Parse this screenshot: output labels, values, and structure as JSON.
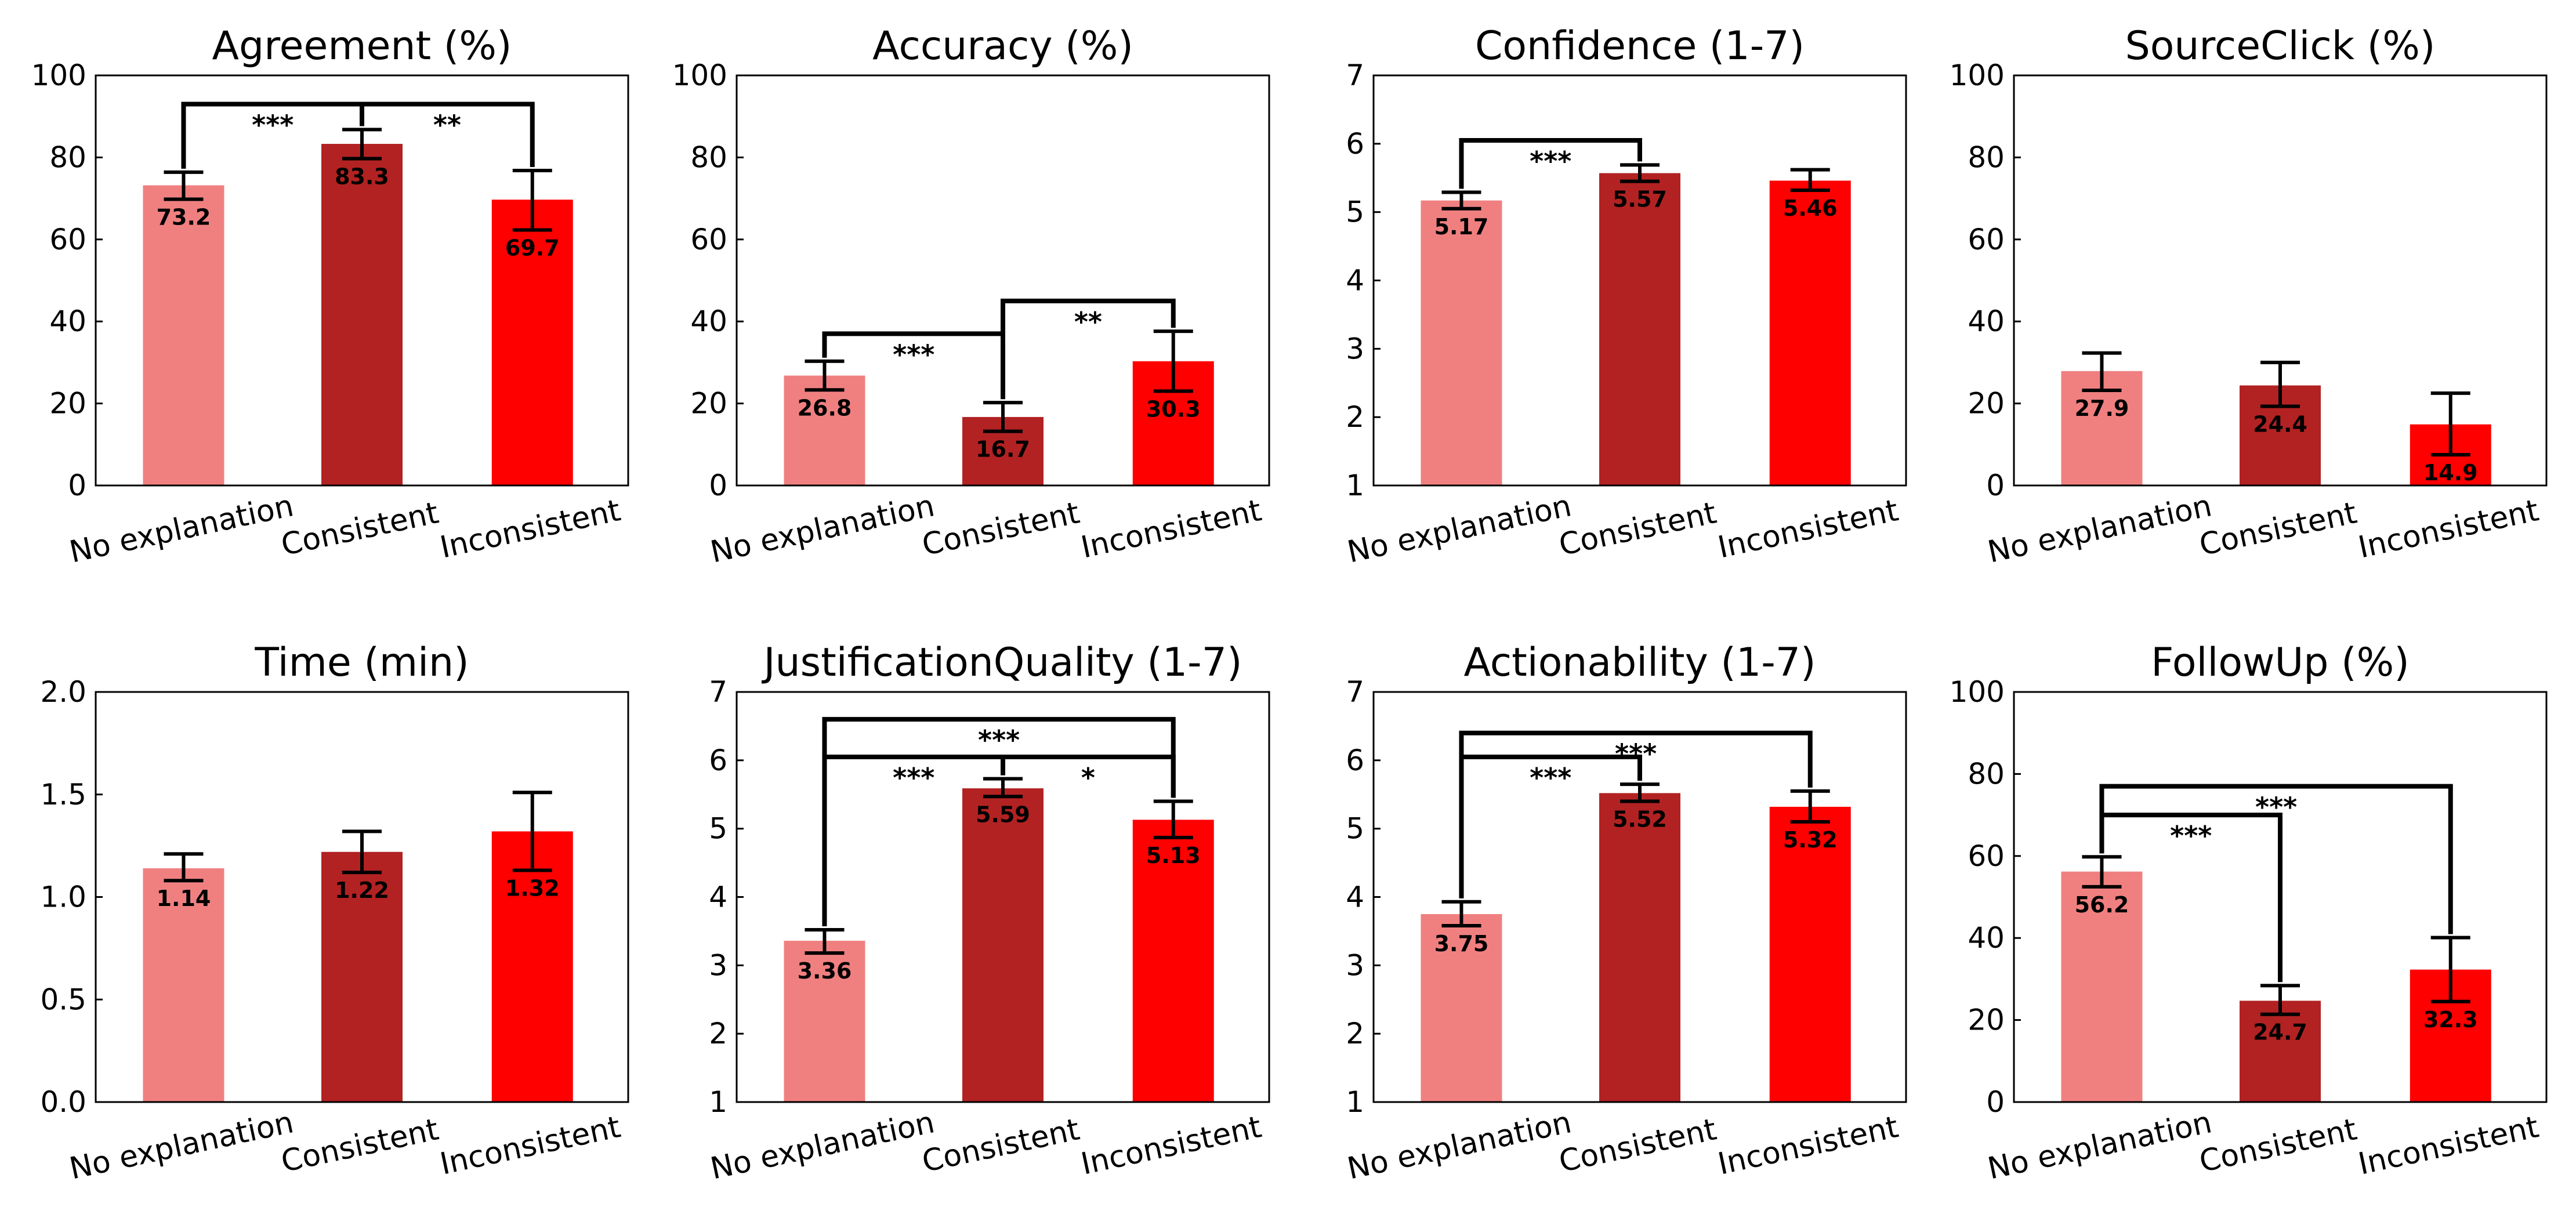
{
  "categories": [
    "No explanation",
    "Consistent",
    "Inconsistent"
  ],
  "colors": {
    "no_explanation": "#f08080",
    "consistent": "#b22222",
    "inconsistent": "#ff0000"
  },
  "chart_data": [
    {
      "type": "bar",
      "title": "Agreement (%)",
      "categories": [
        "No explanation",
        "Consistent",
        "Inconsistent"
      ],
      "values": [
        73.2,
        83.3,
        69.7
      ],
      "value_labels": [
        "73.2",
        "83.3",
        "69.7"
      ],
      "errors": [
        [
          69.8,
          76.4
        ],
        [
          79.7,
          86.8
        ],
        [
          62.3,
          76.8
        ]
      ],
      "ylim": [
        0,
        100
      ],
      "yticks": [
        0,
        20,
        40,
        60,
        80,
        100
      ],
      "ytick_labels": [
        "0",
        "20",
        "40",
        "60",
        "80",
        "100"
      ],
      "significance": [
        {
          "from": 0,
          "to": 1,
          "label": "***",
          "level": 93
        },
        {
          "from": 1,
          "to": 2,
          "label": "**",
          "level": 93
        }
      ]
    },
    {
      "type": "bar",
      "title": "Accuracy (%)",
      "categories": [
        "No explanation",
        "Consistent",
        "Inconsistent"
      ],
      "values": [
        26.8,
        16.7,
        30.3
      ],
      "value_labels": [
        "26.8",
        "16.7",
        "30.3"
      ],
      "errors": [
        [
          23.3,
          30.3
        ],
        [
          13.2,
          20.2
        ],
        [
          23.0,
          37.6
        ]
      ],
      "ylim": [
        0,
        100
      ],
      "yticks": [
        0,
        20,
        40,
        60,
        80,
        100
      ],
      "ytick_labels": [
        "0",
        "20",
        "40",
        "60",
        "80",
        "100"
      ],
      "significance": [
        {
          "from": 0,
          "to": 1,
          "label": "***",
          "level": 37
        },
        {
          "from": 1,
          "to": 2,
          "label": "**",
          "level": 45
        }
      ]
    },
    {
      "type": "bar",
      "title": "Confidence (1-7)",
      "categories": [
        "No explanation",
        "Consistent",
        "Inconsistent"
      ],
      "values": [
        5.17,
        5.57,
        5.46
      ],
      "value_labels": [
        "5.17",
        "5.57",
        "5.46"
      ],
      "errors": [
        [
          5.05,
          5.29
        ],
        [
          5.45,
          5.69
        ],
        [
          5.32,
          5.62
        ]
      ],
      "ylim": [
        1,
        7
      ],
      "yticks": [
        1,
        2,
        3,
        4,
        5,
        6,
        7
      ],
      "ytick_labels": [
        "1",
        "2",
        "3",
        "4",
        "5",
        "6",
        "7"
      ],
      "significance": [
        {
          "from": 0,
          "to": 1,
          "label": "***",
          "level": 6.05
        }
      ]
    },
    {
      "type": "bar",
      "title": "SourceClick (%)",
      "categories": [
        "No explanation",
        "Consistent",
        "Inconsistent"
      ],
      "values": [
        27.9,
        24.4,
        14.9
      ],
      "value_labels": [
        "27.9",
        "24.4",
        "14.9"
      ],
      "errors": [
        [
          23.2,
          32.3
        ],
        [
          19.3,
          30.0
        ],
        [
          7.5,
          22.5
        ]
      ],
      "ylim": [
        0,
        100
      ],
      "yticks": [
        0,
        20,
        40,
        60,
        80,
        100
      ],
      "ytick_labels": [
        "0",
        "20",
        "40",
        "60",
        "80",
        "100"
      ],
      "significance": []
    },
    {
      "type": "bar",
      "title": "Time (min)",
      "categories": [
        "No explanation",
        "Consistent",
        "Inconsistent"
      ],
      "values": [
        1.14,
        1.22,
        1.32
      ],
      "value_labels": [
        "1.14",
        "1.22",
        "1.32"
      ],
      "errors": [
        [
          1.08,
          1.21
        ],
        [
          1.12,
          1.32
        ],
        [
          1.13,
          1.51
        ]
      ],
      "ylim": [
        0,
        2
      ],
      "yticks": [
        0,
        0.5,
        1,
        1.5,
        2
      ],
      "ytick_labels": [
        "0.0",
        "0.5",
        "1.0",
        "1.5",
        "2.0"
      ],
      "significance": []
    },
    {
      "type": "bar",
      "title": "JustificationQuality (1-7)",
      "categories": [
        "No explanation",
        "Consistent",
        "Inconsistent"
      ],
      "values": [
        3.36,
        5.59,
        5.13
      ],
      "value_labels": [
        "3.36",
        "5.59",
        "5.13"
      ],
      "errors": [
        [
          3.18,
          3.52
        ],
        [
          5.47,
          5.73
        ],
        [
          4.87,
          5.4
        ]
      ],
      "ylim": [
        1,
        7
      ],
      "yticks": [
        1,
        2,
        3,
        4,
        5,
        6,
        7
      ],
      "ytick_labels": [
        "1",
        "2",
        "3",
        "4",
        "5",
        "6",
        "7"
      ],
      "significance": [
        {
          "from": 0,
          "to": 1,
          "label": "***",
          "level": 6.05
        },
        {
          "from": 1,
          "to": 2,
          "label": "*",
          "level": 6.05
        },
        {
          "from": 0,
          "to": 2,
          "label": "***",
          "level": 6.6
        }
      ]
    },
    {
      "type": "bar",
      "title": "Actionability (1-7)",
      "categories": [
        "No explanation",
        "Consistent",
        "Inconsistent"
      ],
      "values": [
        3.75,
        5.52,
        5.32
      ],
      "value_labels": [
        "3.75",
        "5.52",
        "5.32"
      ],
      "errors": [
        [
          3.58,
          3.93
        ],
        [
          5.4,
          5.65
        ],
        [
          5.1,
          5.55
        ]
      ],
      "ylim": [
        1,
        7
      ],
      "yticks": [
        1,
        2,
        3,
        4,
        5,
        6,
        7
      ],
      "ytick_labels": [
        "1",
        "2",
        "3",
        "4",
        "5",
        "6",
        "7"
      ],
      "significance": [
        {
          "from": 0,
          "to": 1,
          "label": "***",
          "level": 6.05
        },
        {
          "from": 0,
          "to": 2,
          "label": "***",
          "level": 6.4
        }
      ]
    },
    {
      "type": "bar",
      "title": "FollowUp (%)",
      "categories": [
        "No explanation",
        "Consistent",
        "Inconsistent"
      ],
      "values": [
        56.2,
        24.7,
        32.3
      ],
      "value_labels": [
        "56.2",
        "24.7",
        "32.3"
      ],
      "errors": [
        [
          52.5,
          59.8
        ],
        [
          21.4,
          28.4
        ],
        [
          24.5,
          40.1
        ]
      ],
      "ylim": [
        0,
        100
      ],
      "yticks": [
        0,
        20,
        40,
        60,
        80,
        100
      ],
      "ytick_labels": [
        "0",
        "20",
        "40",
        "60",
        "80",
        "100"
      ],
      "significance": [
        {
          "from": 0,
          "to": 1,
          "label": "***",
          "level": 70
        },
        {
          "from": 0,
          "to": 2,
          "label": "***",
          "level": 77
        }
      ]
    }
  ]
}
